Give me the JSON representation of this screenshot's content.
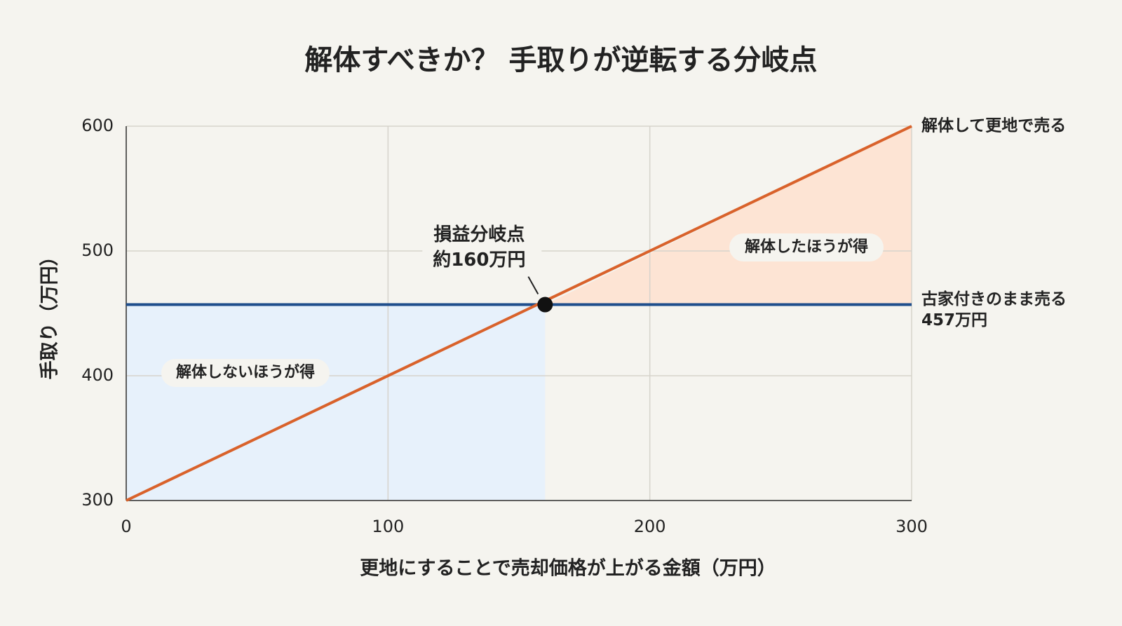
{
  "chart_data": {
    "type": "line",
    "title": "解体すべきか？ 手取りが逆転する分岐点",
    "xlabel": "更地にすることで売却価格が上がる金額（万円）",
    "ylabel": "手取り（万円）",
    "xlim": [
      0,
      300
    ],
    "ylim": [
      300,
      600
    ],
    "xticks": [
      0,
      100,
      200,
      300
    ],
    "yticks": [
      300,
      400,
      500,
      600
    ],
    "grid": true,
    "series": [
      {
        "name": "解体して更地で売る",
        "color": "#d9622b",
        "x": [
          0,
          300
        ],
        "values": [
          300,
          600
        ]
      },
      {
        "name": "古家付きのまま売る",
        "color": "#1f4e8c",
        "x": [
          0,
          300
        ],
        "values": [
          457,
          457
        ],
        "value_labels": [
          null,
          "457万円"
        ]
      }
    ],
    "breakeven": {
      "label": "損益分岐点",
      "value_label": "約160万円",
      "x": 160,
      "y": 457
    },
    "region_labels": [
      "解体しないほうが得",
      "解体したほうが得"
    ]
  }
}
